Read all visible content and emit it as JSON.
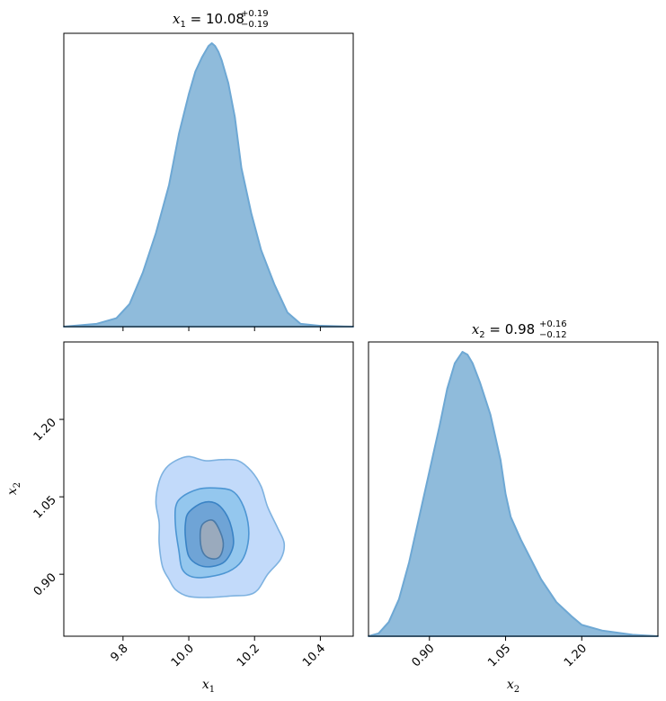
{
  "chart_data": [
    {
      "type": "area",
      "panel": "x1-marginal",
      "title": {
        "var": "x",
        "sub": "1",
        "value": "10.08",
        "plus": "+0.19",
        "minus": "−0.19"
      },
      "xlim": [
        9.62,
        10.5
      ],
      "xticks": [
        9.8,
        10.0,
        10.2,
        10.4
      ],
      "show_tick_labels": false,
      "x": [
        9.62,
        9.72,
        9.78,
        9.82,
        9.86,
        9.9,
        9.94,
        9.97,
        10.0,
        10.02,
        10.04,
        10.06,
        10.07,
        10.08,
        10.09,
        10.1,
        10.12,
        10.14,
        10.16,
        10.19,
        10.22,
        10.26,
        10.3,
        10.34,
        10.4,
        10.5
      ],
      "density": [
        0.0,
        0.01,
        0.03,
        0.08,
        0.19,
        0.33,
        0.5,
        0.68,
        0.82,
        0.9,
        0.95,
        0.99,
        1.0,
        0.99,
        0.97,
        0.94,
        0.86,
        0.74,
        0.56,
        0.4,
        0.27,
        0.15,
        0.05,
        0.01,
        0.003,
        0.0
      ],
      "fill": "#8fbbdb",
      "line": "#6ea8d4"
    },
    {
      "type": "contour",
      "panel": "x1-x2-joint",
      "xlim": [
        9.62,
        10.5
      ],
      "ylim": [
        0.78,
        1.35
      ],
      "xticks": [
        "9.8",
        "10.0",
        "10.2",
        "10.4"
      ],
      "yticks": [
        "0.90",
        "1.05",
        "1.20"
      ],
      "xlabel": {
        "var": "x",
        "sub": "1"
      },
      "ylabel": {
        "var": "x",
        "sub": "2"
      },
      "levels": [
        {
          "fill": "#c2dafa",
          "line": "#7eb2e0",
          "points": [
            [
              9.96,
              1.12
            ],
            [
              10.0,
              1.128
            ],
            [
              10.05,
              1.12
            ],
            [
              10.1,
              1.122
            ],
            [
              10.15,
              1.12
            ],
            [
              10.19,
              1.1
            ],
            [
              10.22,
              1.07
            ],
            [
              10.24,
              1.03
            ],
            [
              10.27,
              0.99
            ],
            [
              10.29,
              0.96
            ],
            [
              10.28,
              0.93
            ],
            [
              10.24,
              0.9
            ],
            [
              10.21,
              0.87
            ],
            [
              10.18,
              0.86
            ],
            [
              10.13,
              0.858
            ],
            [
              10.06,
              0.855
            ],
            [
              10.0,
              0.857
            ],
            [
              9.96,
              0.87
            ],
            [
              9.94,
              0.89
            ],
            [
              9.92,
              0.915
            ],
            [
              9.91,
              0.96
            ],
            [
              9.91,
              1.0
            ],
            [
              9.9,
              1.04
            ],
            [
              9.91,
              1.08
            ],
            [
              9.93,
              1.105
            ]
          ]
        },
        {
          "fill": "#94c7ee",
          "line": "#4d96d3",
          "points": [
            [
              9.98,
              1.05
            ],
            [
              10.03,
              1.065
            ],
            [
              10.08,
              1.067
            ],
            [
              10.13,
              1.062
            ],
            [
              10.16,
              1.04
            ],
            [
              10.18,
              1.0
            ],
            [
              10.18,
              0.96
            ],
            [
              10.16,
              0.925
            ],
            [
              10.12,
              0.905
            ],
            [
              10.06,
              0.895
            ],
            [
              10.01,
              0.895
            ],
            [
              9.98,
              0.91
            ],
            [
              9.97,
              0.945
            ],
            [
              9.96,
              0.99
            ],
            [
              9.96,
              1.03
            ]
          ]
        },
        {
          "fill": "#6fa4d6",
          "line": "#3a83c5",
          "points": [
            [
              10.0,
              1.02
            ],
            [
              10.04,
              1.038
            ],
            [
              10.08,
              1.038
            ],
            [
              10.11,
              1.02
            ],
            [
              10.13,
              0.99
            ],
            [
              10.135,
              0.955
            ],
            [
              10.11,
              0.925
            ],
            [
              10.07,
              0.915
            ],
            [
              10.03,
              0.918
            ],
            [
              10.0,
              0.935
            ],
            [
              9.99,
              0.97
            ],
            [
              9.99,
              1.0
            ]
          ]
        },
        {
          "fill": "#9aaabd",
          "line": "#4a7aa8",
          "points": [
            [
              10.04,
              0.995
            ],
            [
              10.07,
              1.005
            ],
            [
              10.09,
              0.99
            ],
            [
              10.105,
              0.96
            ],
            [
              10.095,
              0.935
            ],
            [
              10.07,
              0.93
            ],
            [
              10.045,
              0.94
            ],
            [
              10.035,
              0.965
            ]
          ]
        }
      ]
    },
    {
      "type": "area",
      "panel": "x2-marginal",
      "title": {
        "var": "x",
        "sub": "2",
        "value": "0.98",
        "plus": "+0.16",
        "minus": "−0.12"
      },
      "xlim": [
        0.78,
        1.35
      ],
      "xticks": [
        "0.90",
        "1.05",
        "1.20"
      ],
      "xlabel": {
        "var": "x",
        "sub": "2"
      },
      "x": [
        0.78,
        0.8,
        0.82,
        0.84,
        0.86,
        0.88,
        0.9,
        0.92,
        0.935,
        0.95,
        0.965,
        0.975,
        0.985,
        1.0,
        1.02,
        1.04,
        1.05,
        1.06,
        1.08,
        1.1,
        1.12,
        1.15,
        1.18,
        1.2,
        1.24,
        1.3,
        1.35
      ],
      "density": [
        0.0,
        0.01,
        0.05,
        0.13,
        0.26,
        0.42,
        0.58,
        0.74,
        0.87,
        0.96,
        1.0,
        0.99,
        0.96,
        0.89,
        0.78,
        0.62,
        0.5,
        0.42,
        0.34,
        0.27,
        0.2,
        0.12,
        0.07,
        0.04,
        0.02,
        0.005,
        0.0
      ],
      "fill": "#8fbbdb",
      "line": "#6ea8d4"
    }
  ]
}
